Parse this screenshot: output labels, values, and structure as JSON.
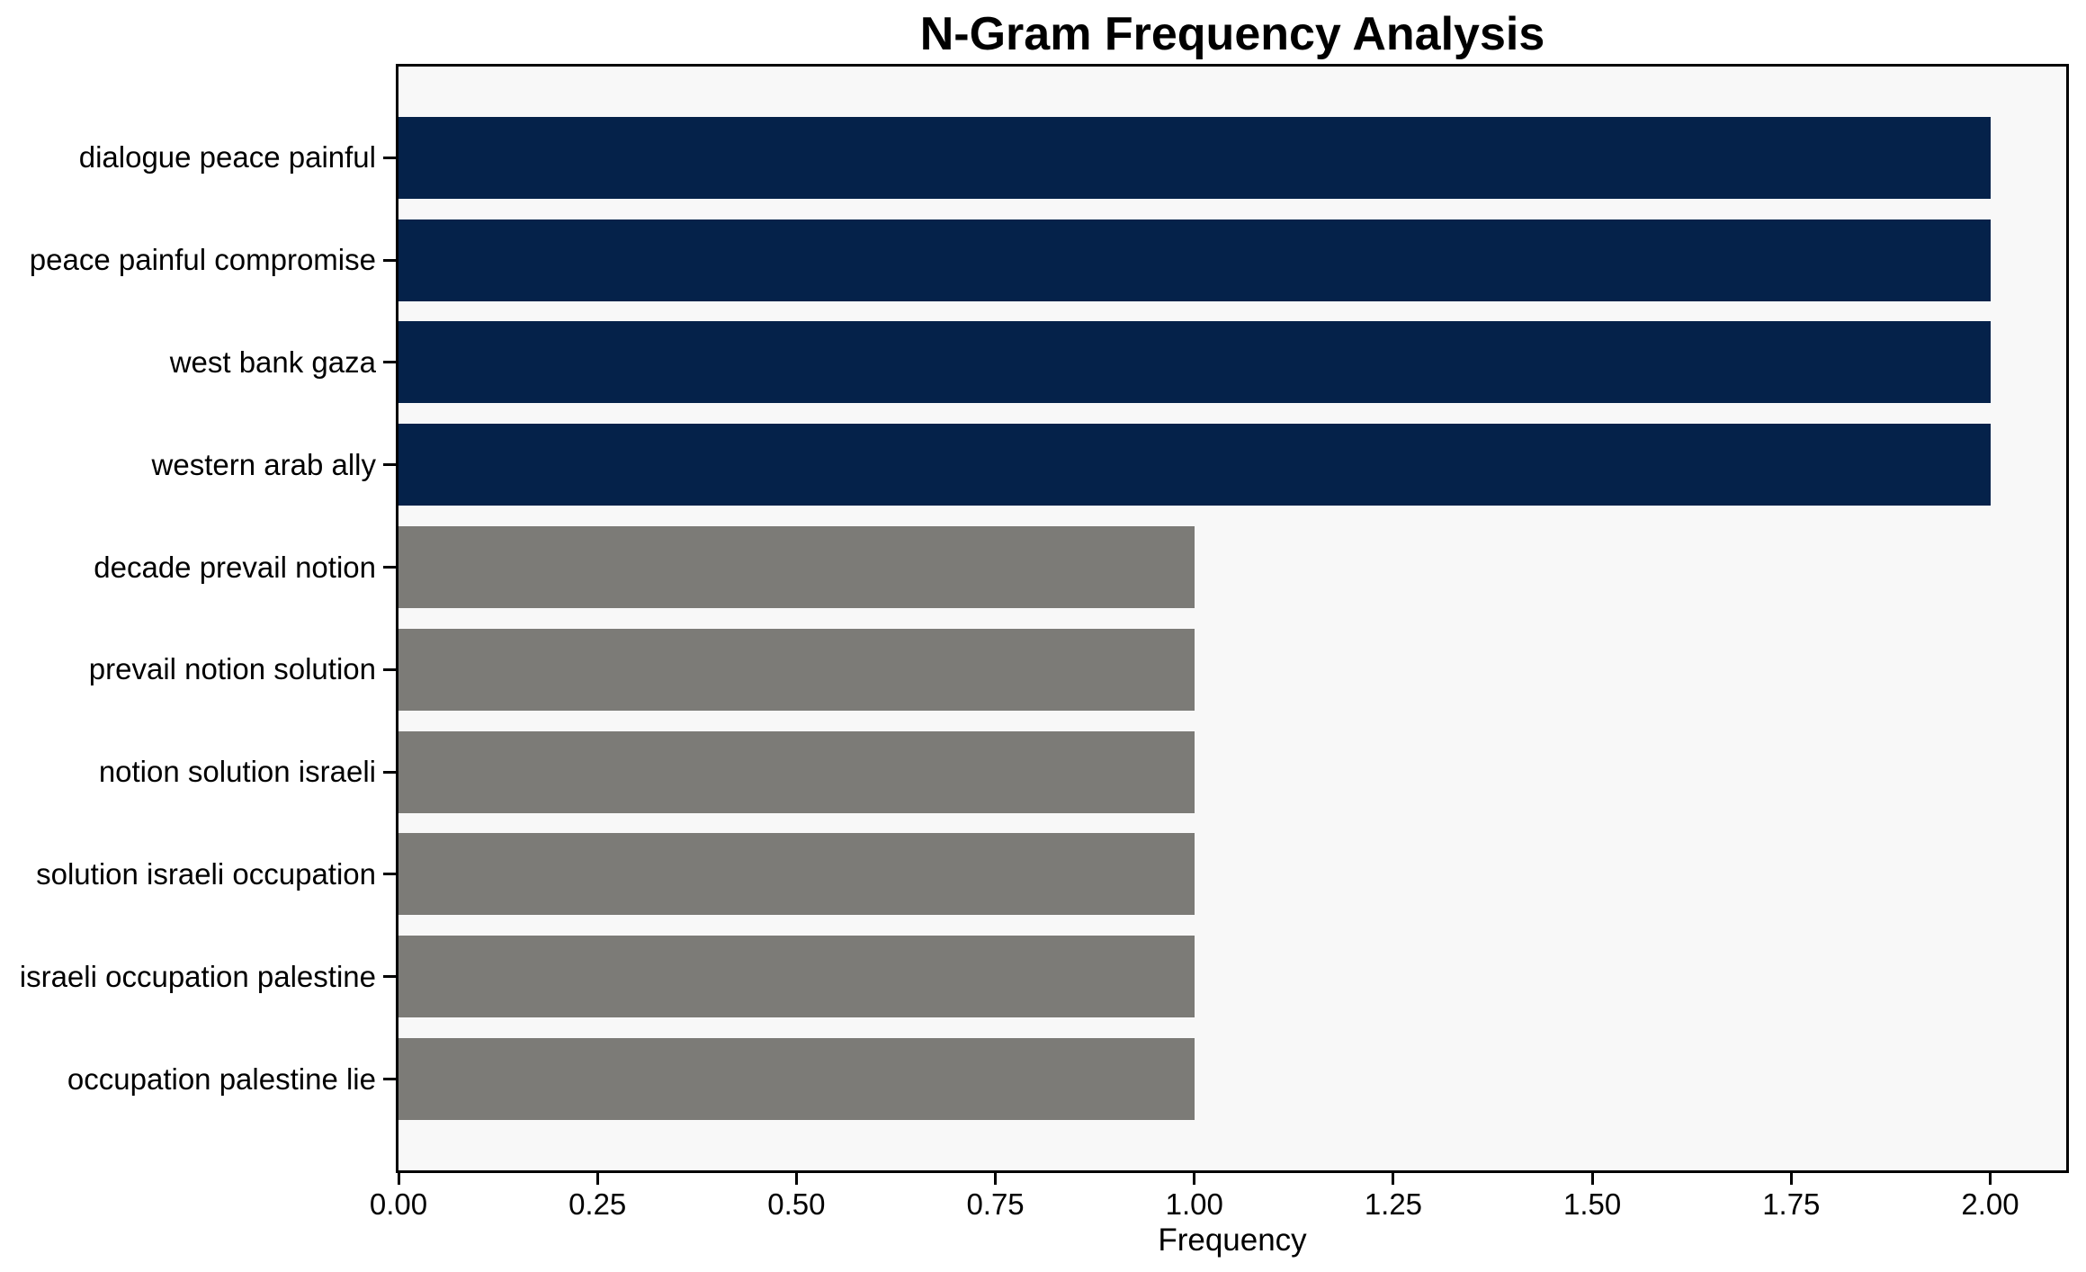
{
  "chart_data": {
    "type": "bar",
    "orientation": "horizontal",
    "title": "N-Gram Frequency Analysis",
    "xlabel": "Frequency",
    "ylabel": "",
    "categories": [
      "dialogue peace painful",
      "peace painful compromise",
      "west bank gaza",
      "western arab ally",
      "decade prevail notion",
      "prevail notion solution",
      "notion solution israeli",
      "solution israeli occupation",
      "israeli occupation palestine",
      "occupation palestine lie"
    ],
    "values": [
      2,
      2,
      2,
      2,
      1,
      1,
      1,
      1,
      1,
      1
    ],
    "bar_colors": [
      "#05224a",
      "#05224a",
      "#05224a",
      "#05224a",
      "#7c7b77",
      "#7c7b77",
      "#7c7b77",
      "#7c7b77",
      "#7c7b77",
      "#7c7b77"
    ],
    "xlim": [
      0,
      2.0955
    ],
    "xticks": [
      0,
      0.25,
      0.5,
      0.75,
      1,
      1.25,
      1.5,
      1.75,
      2
    ],
    "xtick_labels": [
      "0.00",
      "0.25",
      "0.50",
      "0.75",
      "1.00",
      "1.25",
      "1.50",
      "1.75",
      "2.00"
    ],
    "grid": false,
    "legend": null,
    "colors": {
      "navy": "#05224a",
      "gray": "#7c7b77",
      "plot_background": "#f8f8f8",
      "figure_background": "#ffffff",
      "axis": "#000000",
      "text": "#000000"
    }
  }
}
